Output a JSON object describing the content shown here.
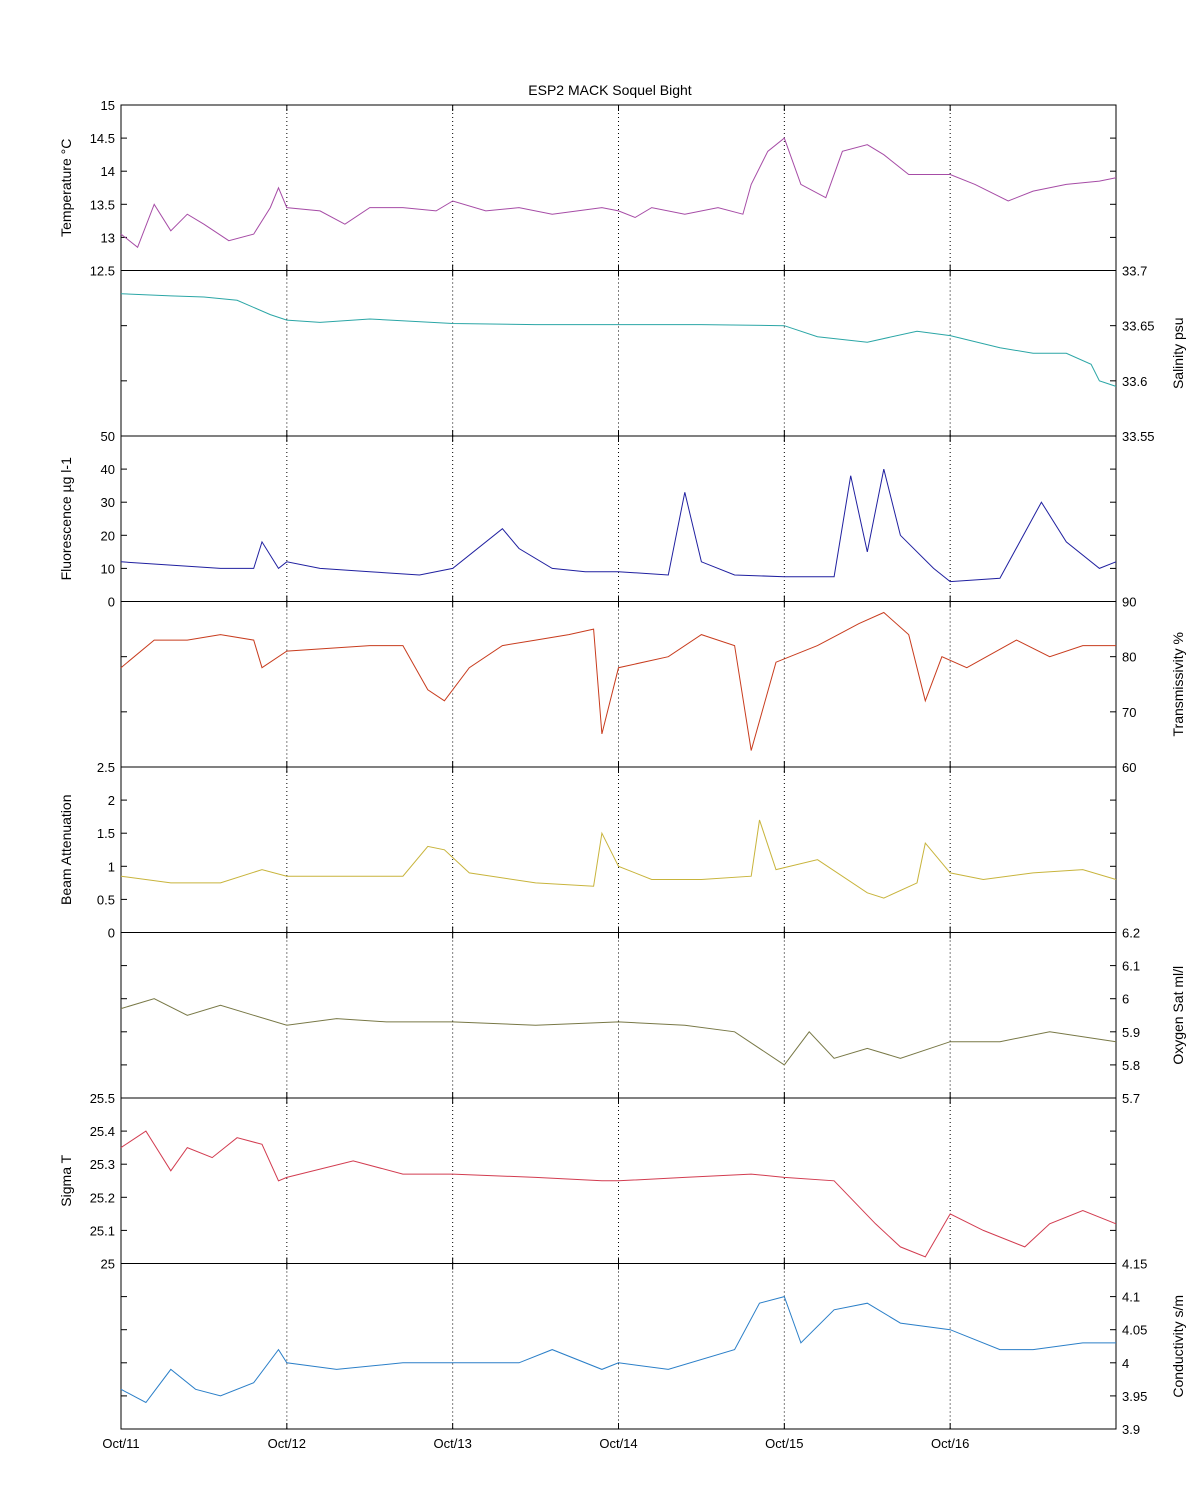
{
  "chart_data": {
    "type": "line",
    "title": "ESP2 MACK  Soquel Bight",
    "x_ticks": [
      "Oct/11",
      "Oct/12",
      "Oct/13",
      "Oct/14",
      "Oct/15",
      "Oct/16"
    ],
    "x_range": [
      "Oct/11",
      "Oct/17"
    ],
    "grid": "vertical dotted lines at each day",
    "panels": [
      {
        "name": "Temperature",
        "ylabel": "Temperature °C",
        "axis_side": "left",
        "ylim": [
          12.5,
          15
        ],
        "yticks": [
          "12.5",
          "13",
          "13.5",
          "14",
          "14.5",
          "15"
        ],
        "color": "#a64ca6",
        "series": [
          {
            "x": 0.0,
            "y": 13.05
          },
          {
            "x": 0.1,
            "y": 12.85
          },
          {
            "x": 0.2,
            "y": 13.5
          },
          {
            "x": 0.3,
            "y": 13.1
          },
          {
            "x": 0.4,
            "y": 13.35
          },
          {
            "x": 0.5,
            "y": 13.2
          },
          {
            "x": 0.65,
            "y": 12.95
          },
          {
            "x": 0.8,
            "y": 13.05
          },
          {
            "x": 0.9,
            "y": 13.45
          },
          {
            "x": 0.95,
            "y": 13.75
          },
          {
            "x": 1.0,
            "y": 13.45
          },
          {
            "x": 1.2,
            "y": 13.4
          },
          {
            "x": 1.35,
            "y": 13.2
          },
          {
            "x": 1.5,
            "y": 13.45
          },
          {
            "x": 1.7,
            "y": 13.45
          },
          {
            "x": 1.9,
            "y": 13.4
          },
          {
            "x": 2.0,
            "y": 13.55
          },
          {
            "x": 2.2,
            "y": 13.4
          },
          {
            "x": 2.4,
            "y": 13.45
          },
          {
            "x": 2.6,
            "y": 13.35
          },
          {
            "x": 2.9,
            "y": 13.45
          },
          {
            "x": 3.0,
            "y": 13.4
          },
          {
            "x": 3.1,
            "y": 13.3
          },
          {
            "x": 3.2,
            "y": 13.45
          },
          {
            "x": 3.4,
            "y": 13.35
          },
          {
            "x": 3.6,
            "y": 13.45
          },
          {
            "x": 3.75,
            "y": 13.35
          },
          {
            "x": 3.8,
            "y": 13.8
          },
          {
            "x": 3.9,
            "y": 14.3
          },
          {
            "x": 4.0,
            "y": 14.5
          },
          {
            "x": 4.1,
            "y": 13.8
          },
          {
            "x": 4.25,
            "y": 13.6
          },
          {
            "x": 4.35,
            "y": 14.3
          },
          {
            "x": 4.5,
            "y": 14.4
          },
          {
            "x": 4.6,
            "y": 14.25
          },
          {
            "x": 4.75,
            "y": 13.95
          },
          {
            "x": 4.9,
            "y": 13.95
          },
          {
            "x": 5.0,
            "y": 13.95
          },
          {
            "x": 5.15,
            "y": 13.8
          },
          {
            "x": 5.35,
            "y": 13.55
          },
          {
            "x": 5.5,
            "y": 13.7
          },
          {
            "x": 5.7,
            "y": 13.8
          },
          {
            "x": 5.9,
            "y": 13.85
          },
          {
            "x": 6.0,
            "y": 13.9
          }
        ]
      },
      {
        "name": "Salinity",
        "ylabel": "Salinity psu",
        "axis_side": "right",
        "ylim": [
          33.55,
          33.7
        ],
        "yticks": [
          "33.55",
          "33.6",
          "33.65",
          "33.7"
        ],
        "color": "#2ba6a6",
        "series": [
          {
            "x": 0.0,
            "y": 33.679
          },
          {
            "x": 0.3,
            "y": 33.677
          },
          {
            "x": 0.5,
            "y": 33.676
          },
          {
            "x": 0.7,
            "y": 33.673
          },
          {
            "x": 0.9,
            "y": 33.66
          },
          {
            "x": 1.0,
            "y": 33.655
          },
          {
            "x": 1.2,
            "y": 33.653
          },
          {
            "x": 1.5,
            "y": 33.656
          },
          {
            "x": 2.0,
            "y": 33.652
          },
          {
            "x": 2.5,
            "y": 33.651
          },
          {
            "x": 3.0,
            "y": 33.651
          },
          {
            "x": 3.5,
            "y": 33.651
          },
          {
            "x": 4.0,
            "y": 33.65
          },
          {
            "x": 4.2,
            "y": 33.64
          },
          {
            "x": 4.5,
            "y": 33.635
          },
          {
            "x": 4.8,
            "y": 33.645
          },
          {
            "x": 5.0,
            "y": 33.641
          },
          {
            "x": 5.3,
            "y": 33.63
          },
          {
            "x": 5.5,
            "y": 33.625
          },
          {
            "x": 5.7,
            "y": 33.625
          },
          {
            "x": 5.85,
            "y": 33.615
          },
          {
            "x": 5.9,
            "y": 33.6
          },
          {
            "x": 6.0,
            "y": 33.595
          }
        ]
      },
      {
        "name": "Fluorescence",
        "ylabel": "Fluorescence µg l-1",
        "axis_side": "left",
        "ylim": [
          0,
          50
        ],
        "yticks": [
          "0",
          "10",
          "20",
          "30",
          "40",
          "50"
        ],
        "color": "#2020a0",
        "series": [
          {
            "x": 0.0,
            "y": 12
          },
          {
            "x": 0.3,
            "y": 11
          },
          {
            "x": 0.6,
            "y": 10
          },
          {
            "x": 0.8,
            "y": 10
          },
          {
            "x": 0.85,
            "y": 18
          },
          {
            "x": 0.95,
            "y": 10
          },
          {
            "x": 1.0,
            "y": 12
          },
          {
            "x": 1.2,
            "y": 10
          },
          {
            "x": 1.5,
            "y": 9
          },
          {
            "x": 1.8,
            "y": 8
          },
          {
            "x": 2.0,
            "y": 10
          },
          {
            "x": 2.3,
            "y": 22
          },
          {
            "x": 2.4,
            "y": 16
          },
          {
            "x": 2.6,
            "y": 10
          },
          {
            "x": 2.8,
            "y": 9
          },
          {
            "x": 3.0,
            "y": 9
          },
          {
            "x": 3.3,
            "y": 8
          },
          {
            "x": 3.4,
            "y": 33
          },
          {
            "x": 3.5,
            "y": 12
          },
          {
            "x": 3.7,
            "y": 8
          },
          {
            "x": 4.0,
            "y": 7.5
          },
          {
            "x": 4.3,
            "y": 7.5
          },
          {
            "x": 4.4,
            "y": 38
          },
          {
            "x": 4.5,
            "y": 15
          },
          {
            "x": 4.6,
            "y": 40
          },
          {
            "x": 4.7,
            "y": 20
          },
          {
            "x": 4.9,
            "y": 10
          },
          {
            "x": 5.0,
            "y": 6
          },
          {
            "x": 5.3,
            "y": 7
          },
          {
            "x": 5.55,
            "y": 30
          },
          {
            "x": 5.7,
            "y": 18
          },
          {
            "x": 5.9,
            "y": 10
          },
          {
            "x": 6.0,
            "y": 12
          }
        ]
      },
      {
        "name": "Transmissivity",
        "ylabel": "Transmissivity %",
        "axis_side": "right",
        "ylim": [
          60,
          90
        ],
        "yticks": [
          "60",
          "70",
          "80",
          "90"
        ],
        "color": "#c83c1e",
        "series": [
          {
            "x": 0.0,
            "y": 78
          },
          {
            "x": 0.2,
            "y": 83
          },
          {
            "x": 0.4,
            "y": 83
          },
          {
            "x": 0.6,
            "y": 84
          },
          {
            "x": 0.8,
            "y": 83
          },
          {
            "x": 0.85,
            "y": 78
          },
          {
            "x": 1.0,
            "y": 81
          },
          {
            "x": 1.5,
            "y": 82
          },
          {
            "x": 1.7,
            "y": 82
          },
          {
            "x": 1.85,
            "y": 74
          },
          {
            "x": 1.95,
            "y": 72
          },
          {
            "x": 2.1,
            "y": 78
          },
          {
            "x": 2.3,
            "y": 82
          },
          {
            "x": 2.5,
            "y": 83
          },
          {
            "x": 2.7,
            "y": 84
          },
          {
            "x": 2.85,
            "y": 85
          },
          {
            "x": 2.9,
            "y": 66
          },
          {
            "x": 3.0,
            "y": 78
          },
          {
            "x": 3.3,
            "y": 80
          },
          {
            "x": 3.5,
            "y": 84
          },
          {
            "x": 3.7,
            "y": 82
          },
          {
            "x": 3.8,
            "y": 63
          },
          {
            "x": 3.95,
            "y": 79
          },
          {
            "x": 4.2,
            "y": 82
          },
          {
            "x": 4.45,
            "y": 86
          },
          {
            "x": 4.6,
            "y": 88
          },
          {
            "x": 4.75,
            "y": 84
          },
          {
            "x": 4.85,
            "y": 72
          },
          {
            "x": 4.95,
            "y": 80
          },
          {
            "x": 5.1,
            "y": 78
          },
          {
            "x": 5.4,
            "y": 83
          },
          {
            "x": 5.6,
            "y": 80
          },
          {
            "x": 5.8,
            "y": 82
          },
          {
            "x": 6.0,
            "y": 82
          }
        ]
      },
      {
        "name": "Beam Attenuation",
        "ylabel": "Beam Attenuation",
        "axis_side": "left",
        "ylim": [
          0,
          2.5
        ],
        "yticks": [
          "0",
          "0.5",
          "1",
          "1.5",
          "2",
          "2.5"
        ],
        "color": "#c8b43c",
        "series": [
          {
            "x": 0.0,
            "y": 0.85
          },
          {
            "x": 0.3,
            "y": 0.75
          },
          {
            "x": 0.6,
            "y": 0.75
          },
          {
            "x": 0.85,
            "y": 0.95
          },
          {
            "x": 1.0,
            "y": 0.85
          },
          {
            "x": 1.5,
            "y": 0.85
          },
          {
            "x": 1.7,
            "y": 0.85
          },
          {
            "x": 1.85,
            "y": 1.3
          },
          {
            "x": 1.95,
            "y": 1.25
          },
          {
            "x": 2.1,
            "y": 0.9
          },
          {
            "x": 2.5,
            "y": 0.75
          },
          {
            "x": 2.85,
            "y": 0.7
          },
          {
            "x": 2.9,
            "y": 1.5
          },
          {
            "x": 3.0,
            "y": 1.0
          },
          {
            "x": 3.2,
            "y": 0.8
          },
          {
            "x": 3.5,
            "y": 0.8
          },
          {
            "x": 3.8,
            "y": 0.85
          },
          {
            "x": 3.85,
            "y": 1.7
          },
          {
            "x": 3.95,
            "y": 0.95
          },
          {
            "x": 4.2,
            "y": 1.1
          },
          {
            "x": 4.5,
            "y": 0.6
          },
          {
            "x": 4.6,
            "y": 0.52
          },
          {
            "x": 4.8,
            "y": 0.75
          },
          {
            "x": 4.85,
            "y": 1.35
          },
          {
            "x": 5.0,
            "y": 0.9
          },
          {
            "x": 5.2,
            "y": 0.8
          },
          {
            "x": 5.5,
            "y": 0.9
          },
          {
            "x": 5.8,
            "y": 0.95
          },
          {
            "x": 6.0,
            "y": 0.8
          }
        ]
      },
      {
        "name": "Oxygen",
        "ylabel": "Oxygen Sat ml/l",
        "axis_side": "right",
        "ylim": [
          5.7,
          6.2
        ],
        "yticks": [
          "5.7",
          "5.8",
          "5.9",
          "6",
          "6.1",
          "6.2"
        ],
        "color": "#787846",
        "series": [
          {
            "x": 0.0,
            "y": 5.97
          },
          {
            "x": 0.2,
            "y": 6.0
          },
          {
            "x": 0.4,
            "y": 5.95
          },
          {
            "x": 0.6,
            "y": 5.98
          },
          {
            "x": 0.8,
            "y": 5.95
          },
          {
            "x": 1.0,
            "y": 5.92
          },
          {
            "x": 1.3,
            "y": 5.94
          },
          {
            "x": 1.6,
            "y": 5.93
          },
          {
            "x": 2.0,
            "y": 5.93
          },
          {
            "x": 2.5,
            "y": 5.92
          },
          {
            "x": 3.0,
            "y": 5.93
          },
          {
            "x": 3.4,
            "y": 5.92
          },
          {
            "x": 3.7,
            "y": 5.9
          },
          {
            "x": 4.0,
            "y": 5.8
          },
          {
            "x": 4.15,
            "y": 5.9
          },
          {
            "x": 4.3,
            "y": 5.82
          },
          {
            "x": 4.5,
            "y": 5.85
          },
          {
            "x": 4.7,
            "y": 5.82
          },
          {
            "x": 5.0,
            "y": 5.87
          },
          {
            "x": 5.3,
            "y": 5.87
          },
          {
            "x": 5.6,
            "y": 5.9
          },
          {
            "x": 6.0,
            "y": 5.87
          }
        ]
      },
      {
        "name": "Sigma T",
        "ylabel": "Sigma T",
        "axis_side": "left",
        "ylim": [
          25,
          25.5
        ],
        "yticks": [
          "25",
          "25.1",
          "25.2",
          "25.3",
          "25.4",
          "25.5"
        ],
        "color": "#d23c50",
        "series": [
          {
            "x": 0.0,
            "y": 25.35
          },
          {
            "x": 0.15,
            "y": 25.4
          },
          {
            "x": 0.3,
            "y": 25.28
          },
          {
            "x": 0.4,
            "y": 25.35
          },
          {
            "x": 0.55,
            "y": 25.32
          },
          {
            "x": 0.7,
            "y": 25.38
          },
          {
            "x": 0.85,
            "y": 25.36
          },
          {
            "x": 0.95,
            "y": 25.25
          },
          {
            "x": 1.0,
            "y": 25.26
          },
          {
            "x": 1.4,
            "y": 25.31
          },
          {
            "x": 1.7,
            "y": 25.27
          },
          {
            "x": 2.0,
            "y": 25.27
          },
          {
            "x": 2.5,
            "y": 25.26
          },
          {
            "x": 2.9,
            "y": 25.25
          },
          {
            "x": 3.0,
            "y": 25.25
          },
          {
            "x": 3.4,
            "y": 25.26
          },
          {
            "x": 3.8,
            "y": 25.27
          },
          {
            "x": 4.0,
            "y": 25.26
          },
          {
            "x": 4.3,
            "y": 25.25
          },
          {
            "x": 4.55,
            "y": 25.12
          },
          {
            "x": 4.7,
            "y": 25.05
          },
          {
            "x": 4.85,
            "y": 25.02
          },
          {
            "x": 5.0,
            "y": 25.15
          },
          {
            "x": 5.2,
            "y": 25.1
          },
          {
            "x": 5.45,
            "y": 25.05
          },
          {
            "x": 5.6,
            "y": 25.12
          },
          {
            "x": 5.8,
            "y": 25.16
          },
          {
            "x": 6.0,
            "y": 25.12
          }
        ]
      },
      {
        "name": "Conductivity",
        "ylabel": "Conductivity s/m",
        "axis_side": "right",
        "ylim": [
          3.9,
          4.15
        ],
        "yticks": [
          "3.9",
          "3.95",
          "4",
          "4.05",
          "4.1",
          "4.15"
        ],
        "color": "#2b7fc8",
        "series": [
          {
            "x": 0.0,
            "y": 3.96
          },
          {
            "x": 0.15,
            "y": 3.94
          },
          {
            "x": 0.3,
            "y": 3.99
          },
          {
            "x": 0.45,
            "y": 3.96
          },
          {
            "x": 0.6,
            "y": 3.95
          },
          {
            "x": 0.8,
            "y": 3.97
          },
          {
            "x": 0.95,
            "y": 4.02
          },
          {
            "x": 1.0,
            "y": 4.0
          },
          {
            "x": 1.3,
            "y": 3.99
          },
          {
            "x": 1.7,
            "y": 4.0
          },
          {
            "x": 2.0,
            "y": 4.0
          },
          {
            "x": 2.4,
            "y": 4.0
          },
          {
            "x": 2.6,
            "y": 4.02
          },
          {
            "x": 2.9,
            "y": 3.99
          },
          {
            "x": 3.0,
            "y": 4.0
          },
          {
            "x": 3.3,
            "y": 3.99
          },
          {
            "x": 3.7,
            "y": 4.02
          },
          {
            "x": 3.85,
            "y": 4.09
          },
          {
            "x": 4.0,
            "y": 4.1
          },
          {
            "x": 4.1,
            "y": 4.03
          },
          {
            "x": 4.3,
            "y": 4.08
          },
          {
            "x": 4.5,
            "y": 4.09
          },
          {
            "x": 4.7,
            "y": 4.06
          },
          {
            "x": 5.0,
            "y": 4.05
          },
          {
            "x": 5.3,
            "y": 4.02
          },
          {
            "x": 5.5,
            "y": 4.02
          },
          {
            "x": 5.8,
            "y": 4.03
          },
          {
            "x": 6.0,
            "y": 4.03
          }
        ]
      }
    ]
  }
}
